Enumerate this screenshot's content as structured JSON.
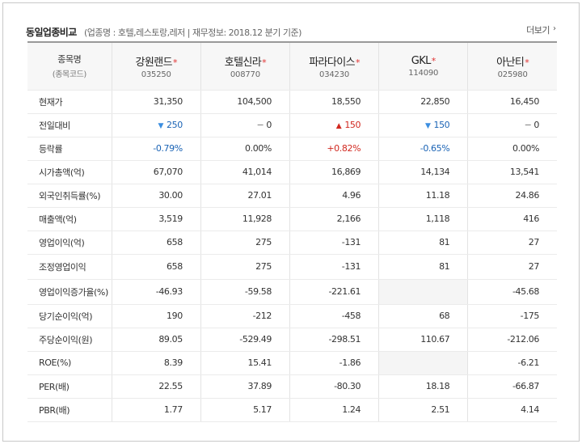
{
  "header": {
    "title": "동일업종비교",
    "subinfo": "(업종명 : 호텔,레스토랑,레저 | 재무정보: 2018.12 분기 기준)",
    "more_label": "더보기",
    "more_icon": "chevron-right-icon"
  },
  "table": {
    "label_head_top": "종목명",
    "label_head_bottom": "(종목코드)",
    "companies": [
      {
        "name": "강원랜드",
        "code": "035250"
      },
      {
        "name": "호텔신라",
        "code": "008770"
      },
      {
        "name": "파라다이스",
        "code": "034230"
      },
      {
        "name": "GKL",
        "code": "114090"
      },
      {
        "name": "아난티",
        "code": "025980"
      }
    ],
    "star": "*",
    "rows": [
      {
        "label": "현재가",
        "values": [
          "31,350",
          "104,500",
          "18,550",
          "22,850",
          "16,450"
        ]
      },
      {
        "label": "전일대비",
        "change": [
          {
            "dir": "down",
            "mark": "▼",
            "value": "250"
          },
          {
            "dir": "flat",
            "mark": "−",
            "value": "0"
          },
          {
            "dir": "up",
            "mark": "▲",
            "value": "150"
          },
          {
            "dir": "down",
            "mark": "▼",
            "value": "150"
          },
          {
            "dir": "flat",
            "mark": "−",
            "value": "0"
          }
        ]
      },
      {
        "label": "등락률",
        "rate": [
          {
            "dir": "down",
            "value": "-0.79%"
          },
          {
            "dir": "flat",
            "value": "0.00%"
          },
          {
            "dir": "up",
            "value": "+0.82%"
          },
          {
            "dir": "down",
            "value": "-0.65%"
          },
          {
            "dir": "flat",
            "value": "0.00%"
          }
        ]
      },
      {
        "label": "시가총액(억)",
        "values": [
          "67,070",
          "41,014",
          "16,869",
          "14,134",
          "13,541"
        ]
      },
      {
        "label": "외국인취득률(%)",
        "values": [
          "30.00",
          "27.01",
          "4.96",
          "11.18",
          "24.86"
        ]
      },
      {
        "label": "매출액(억)",
        "values": [
          "3,519",
          "11,928",
          "2,166",
          "1,118",
          "416"
        ]
      },
      {
        "label": "영업이익(억)",
        "values": [
          "658",
          "275",
          "-131",
          "81",
          "27"
        ]
      },
      {
        "label": "조정영업이익",
        "values": [
          "658",
          "275",
          "-131",
          "81",
          "27"
        ]
      },
      {
        "label": "영업이익증가율(%)",
        "values": [
          "-46.93",
          "-59.58",
          "-221.61",
          "",
          "-45.68"
        ]
      },
      {
        "label": "당기순이익(억)",
        "values": [
          "190",
          "-212",
          "-458",
          "68",
          "-175"
        ]
      },
      {
        "label": "주당순이익(원)",
        "values": [
          "89.05",
          "-529.49",
          "-298.51",
          "110.67",
          "-212.06"
        ]
      },
      {
        "label": "ROE(%)",
        "values": [
          "8.39",
          "15.41",
          "-1.86",
          "",
          "-6.21"
        ]
      },
      {
        "label": "PER(배)",
        "values": [
          "22.55",
          "37.89",
          "-80.30",
          "18.18",
          "-66.87"
        ]
      },
      {
        "label": "PBR(배)",
        "values": [
          "1.77",
          "5.17",
          "1.24",
          "2.51",
          "4.14"
        ]
      }
    ]
  }
}
